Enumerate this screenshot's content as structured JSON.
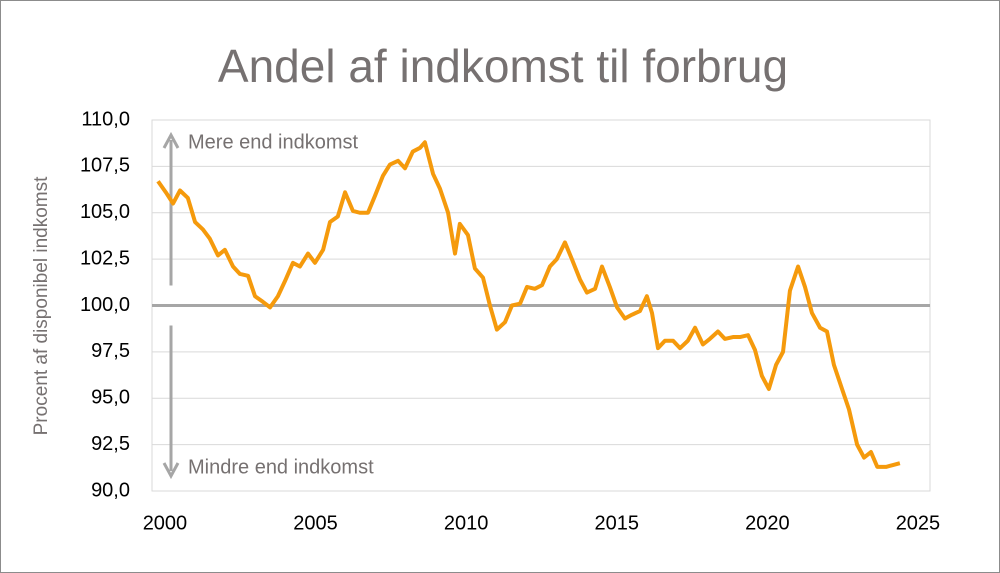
{
  "chart_data": {
    "type": "line",
    "title": "Andel af indkomst til forbrug",
    "y_label": "Procent af disponibel indkomst",
    "annotations": [
      "Mere end indkomst",
      "Mindre end indkomst"
    ],
    "reference_line": 100,
    "grid": true,
    "xlim": [
      1999.57,
      2025.4
    ],
    "xticks": [
      2000,
      2005,
      2010,
      2015,
      2020,
      2025
    ],
    "ylim": [
      90,
      110
    ],
    "yticks": [
      {
        "value": 90,
        "label": "90,0"
      },
      {
        "value": 92.5,
        "label": "92,5"
      },
      {
        "value": 95,
        "label": "95,0"
      },
      {
        "value": 97.5,
        "label": "97,5"
      },
      {
        "value": 100,
        "label": "100,0"
      },
      {
        "value": 102.5,
        "label": "102,5"
      },
      {
        "value": 105,
        "label": "105,0"
      },
      {
        "value": 107.5,
        "label": "107,5"
      },
      {
        "value": 110,
        "label": "110,0"
      }
    ],
    "x": [
      1999.77,
      2000.03,
      2000.27,
      2000.5,
      2000.76,
      2001.0,
      2001.26,
      2001.49,
      2001.76,
      2001.99,
      2002.26,
      2002.49,
      2002.76,
      2002.99,
      2003.25,
      2003.49,
      2003.75,
      2003.98,
      2004.25,
      2004.48,
      2004.75,
      2004.98,
      2005.25,
      2005.48,
      2005.74,
      2005.98,
      2006.24,
      2006.47,
      2006.74,
      2006.97,
      2007.24,
      2007.47,
      2007.74,
      2007.97,
      2008.23,
      2008.47,
      2008.63,
      2008.9,
      2009.13,
      2009.4,
      2009.63,
      2009.79,
      2010.06,
      2010.29,
      2010.56,
      2010.79,
      2011.02,
      2011.29,
      2011.52,
      2011.79,
      2012.02,
      2012.28,
      2012.52,
      2012.78,
      2013.01,
      2013.28,
      2013.51,
      2013.78,
      2014.01,
      2014.28,
      2014.51,
      2014.77,
      2015.01,
      2015.27,
      2015.5,
      2015.77,
      2016.0,
      2016.17,
      2016.37,
      2016.6,
      2016.87,
      2017.1,
      2017.36,
      2017.6,
      2017.86,
      2018.09,
      2018.36,
      2018.59,
      2018.86,
      2019.09,
      2019.36,
      2019.59,
      2019.82,
      2020.05,
      2020.29,
      2020.52,
      2020.75,
      2021.02,
      2021.25,
      2021.48,
      2021.75,
      2021.98,
      2022.21,
      2022.48,
      2022.71,
      2022.98,
      2023.21,
      2023.44,
      2023.65,
      2023.94,
      2024.17,
      2024.4
    ],
    "series": [
      {
        "name": "Andel af indkomst til forbrug",
        "color": "#f59a0c",
        "values": [
          106.7,
          106.1,
          105.5,
          106.2,
          105.8,
          104.5,
          104.1,
          103.6,
          102.7,
          103.0,
          102.1,
          101.7,
          101.6,
          100.5,
          100.2,
          99.9,
          100.5,
          101.3,
          102.3,
          102.1,
          102.8,
          102.3,
          103.0,
          104.5,
          104.8,
          106.1,
          105.1,
          105.0,
          105.0,
          105.9,
          107.0,
          107.6,
          107.8,
          107.4,
          108.3,
          108.5,
          108.8,
          107.1,
          106.3,
          105.0,
          102.8,
          104.4,
          103.8,
          102.0,
          101.5,
          100.0,
          98.7,
          99.1,
          100.0,
          100.1,
          101.0,
          100.9,
          101.1,
          102.1,
          102.5,
          103.4,
          102.5,
          101.4,
          100.7,
          100.9,
          102.1,
          101.0,
          99.9,
          99.3,
          99.5,
          99.7,
          100.5,
          99.6,
          97.7,
          98.1,
          98.1,
          97.7,
          98.1,
          98.8,
          97.9,
          98.2,
          98.6,
          98.2,
          98.3,
          98.3,
          98.4,
          97.6,
          96.2,
          95.5,
          96.8,
          97.5,
          100.8,
          102.1,
          101.0,
          99.6,
          98.8,
          98.6,
          96.8,
          95.5,
          94.4,
          92.5,
          91.8,
          92.1,
          91.3,
          91.3,
          91.4,
          91.5
        ]
      }
    ]
  }
}
